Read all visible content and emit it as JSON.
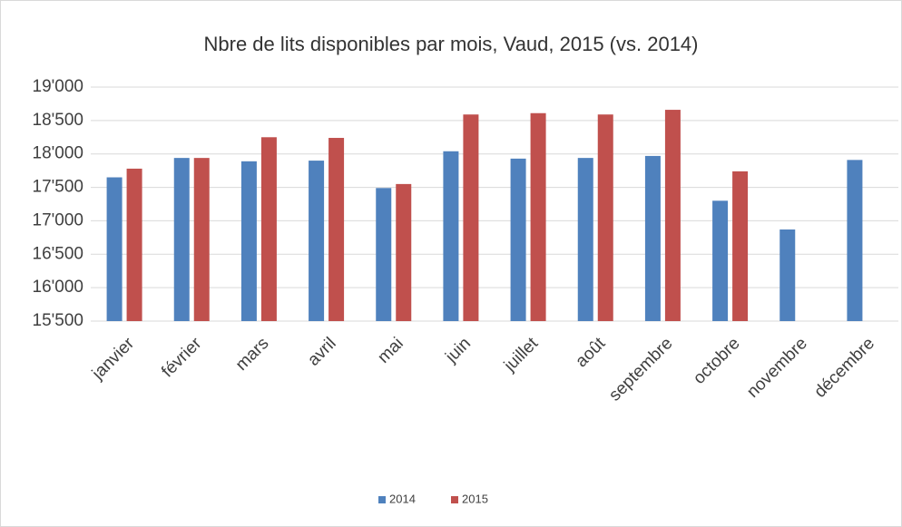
{
  "chart_data": {
    "type": "bar",
    "title": "Nbre de lits disponibles par mois, Vaud, 2015 (vs. 2014)",
    "categories": [
      "janvier",
      "février",
      "mars",
      "avril",
      "mai",
      "juin",
      "juillet",
      "août",
      "septembre",
      "octobre",
      "novembre",
      "décembre"
    ],
    "series": [
      {
        "name": "2014",
        "color": "#4f81bd",
        "values": [
          17650,
          17940,
          17890,
          17900,
          17490,
          18040,
          17930,
          17940,
          17970,
          17300,
          16870,
          17910
        ]
      },
      {
        "name": "2015",
        "color": "#c0504d",
        "values": [
          17780,
          17940,
          18250,
          18240,
          17550,
          18590,
          18610,
          18590,
          18660,
          17740,
          null,
          null
        ]
      }
    ],
    "ylim": [
      15500,
      19000
    ],
    "yticks": [
      {
        "value": 15500,
        "label": "15'500"
      },
      {
        "value": 16000,
        "label": "16'000"
      },
      {
        "value": 16500,
        "label": "16'500"
      },
      {
        "value": 17000,
        "label": "17'000"
      },
      {
        "value": 17500,
        "label": "17'500"
      },
      {
        "value": 18000,
        "label": "18'000"
      },
      {
        "value": 18500,
        "label": "18'500"
      },
      {
        "value": 19000,
        "label": "19'000"
      }
    ],
    "grid": true,
    "legend": "bottom"
  }
}
